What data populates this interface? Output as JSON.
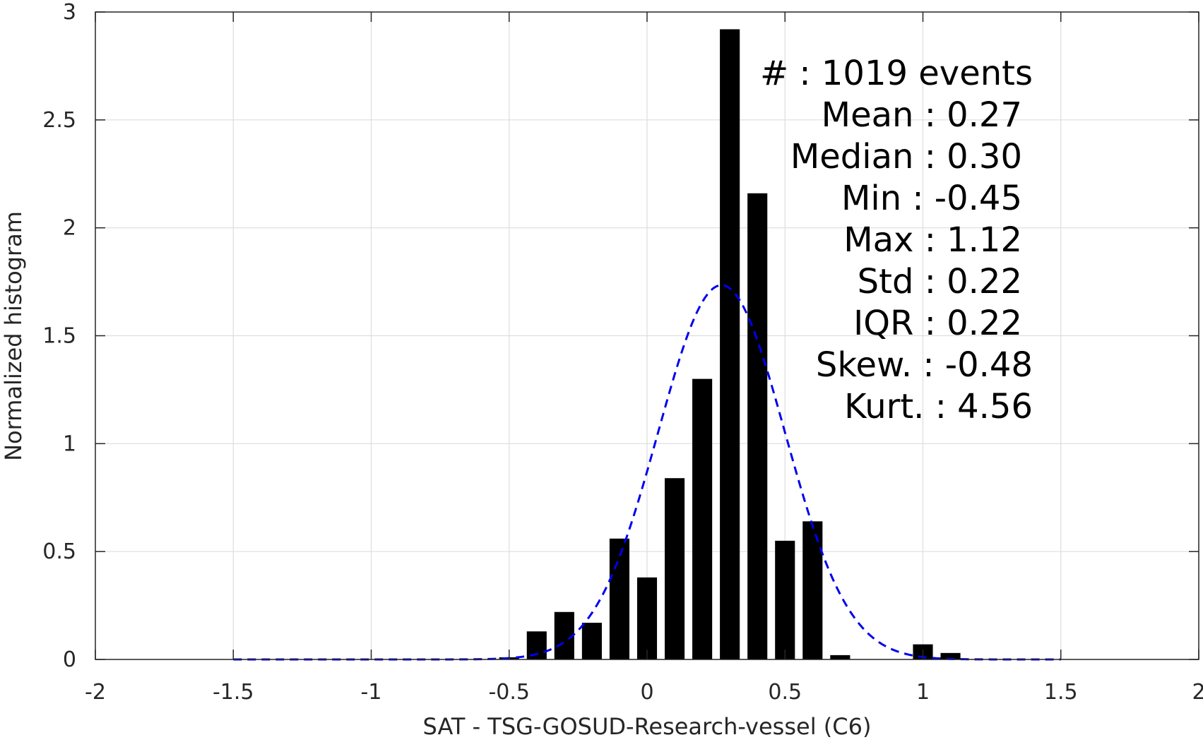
{
  "chart_data": {
    "type": "bar",
    "xlabel": "SAT - TSG-GOSUD-Research-vessel (C6)",
    "ylabel": "Normalized histogram",
    "xlim": [
      -2,
      2
    ],
    "ylim": [
      0,
      3
    ],
    "xticks": [
      -2,
      -1.5,
      -1,
      -0.5,
      0,
      0.5,
      1,
      1.5,
      2
    ],
    "yticks": [
      0,
      0.5,
      1,
      1.5,
      2,
      2.5,
      3
    ],
    "xtick_labels": [
      "-2",
      "-1.5",
      "-1",
      "-0.5",
      "0",
      "0.5",
      "1",
      "1.5",
      "2"
    ],
    "ytick_labels": [
      "0",
      "0.5",
      "1",
      "1.5",
      "2",
      "2.5",
      "3"
    ],
    "grid": true,
    "bin_width": 0.1,
    "bars": {
      "x": [
        -0.5,
        -0.4,
        -0.3,
        -0.2,
        -0.1,
        0.0,
        0.1,
        0.2,
        0.3,
        0.4,
        0.5,
        0.6,
        0.7,
        1.0,
        1.1
      ],
      "values": [
        0.01,
        0.13,
        0.22,
        0.17,
        0.56,
        0.38,
        0.84,
        1.3,
        2.92,
        2.16,
        0.55,
        0.64,
        0.02,
        0.07,
        0.03
      ],
      "color": "#000000"
    },
    "fit_curve": {
      "style": "dashed",
      "color": "#0000ee",
      "x_range": [
        -1.5,
        1.5
      ],
      "peak_x": 0.27
    },
    "stats": [
      "#  : 1019 events",
      "Mean : 0.27",
      "Median : 0.30",
      "Min : -0.45",
      "Max : 1.12",
      "Std : 0.22",
      "IQR : 0.22",
      "Skew. : -0.48",
      "Kurt. : 4.56"
    ]
  }
}
